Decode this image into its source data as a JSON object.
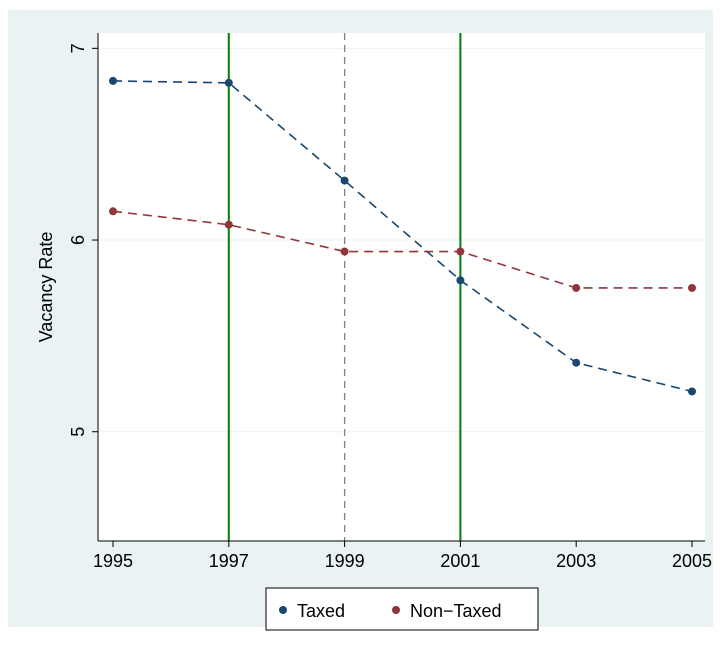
{
  "chart_data": {
    "type": "line",
    "title": "",
    "xlabel": "",
    "ylabel": "Vacancy Rate",
    "x": [
      1995,
      1997,
      1999,
      2001,
      2003,
      2005
    ],
    "x_ticks": [
      "1995",
      "1997",
      "1999",
      "2001",
      "2003",
      "2005"
    ],
    "y_ticks": [
      5,
      6,
      7
    ],
    "y_tick_labels": [
      "5",
      "6",
      "7"
    ],
    "xlim": [
      1995,
      2005
    ],
    "ylim": [
      4.43,
      7.08
    ],
    "grid": "horizontal",
    "legend_position": "bottom",
    "series": [
      {
        "name": "Taxed",
        "color": "#1a476f",
        "style": "dashed",
        "values": [
          6.83,
          6.82,
          6.31,
          5.79,
          5.36,
          5.21
        ]
      },
      {
        "name": "Non−Taxed",
        "color": "#90353b",
        "style": "dashed",
        "values": [
          6.15,
          6.08,
          5.94,
          5.94,
          5.75,
          5.75
        ]
      }
    ],
    "reference_lines": [
      {
        "x": 1997,
        "color": "#008000",
        "style": "solid"
      },
      {
        "x": 1999,
        "color": "#808080",
        "style": "dashed"
      },
      {
        "x": 2001,
        "color": "#008000",
        "style": "solid"
      }
    ],
    "colors": {
      "outer_background": "#eaf2f3",
      "plot_background": "#ffffff",
      "grid": "#eaf2f3"
    }
  }
}
